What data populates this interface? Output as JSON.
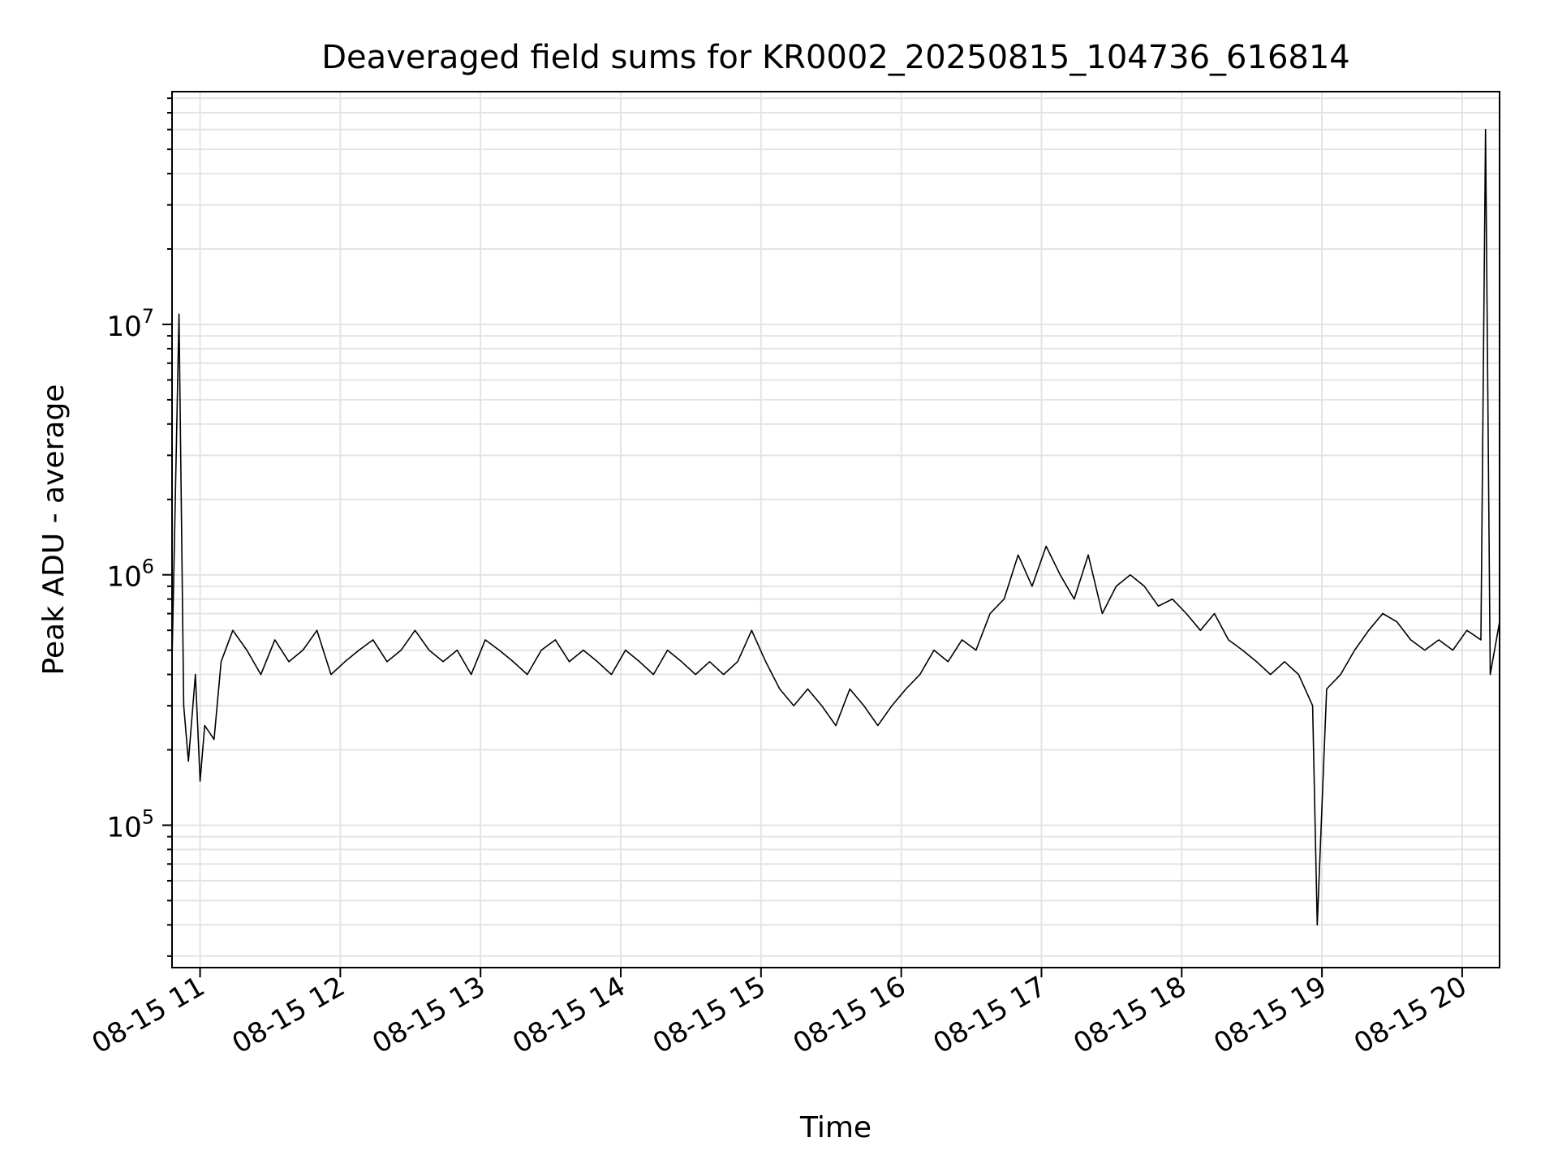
{
  "chart_data": {
    "type": "line",
    "title": "Deaveraged field sums for KR0002_20250815_104736_616814",
    "xlabel": "Time",
    "ylabel": "Peak ADU - average",
    "x_start": "2025-08-15 10:48",
    "x_end": "2025-08-15 20:16",
    "xlim": [
      "2025-08-15 10:48",
      "2025-08-15 20:16"
    ],
    "ylim": [
      27000,
      85000000
    ],
    "yscale": "log",
    "grid": true,
    "legend": "none",
    "xticks": [
      {
        "t": "2025-08-15 11:00",
        "label": "08-15 11"
      },
      {
        "t": "2025-08-15 12:00",
        "label": "08-15 12"
      },
      {
        "t": "2025-08-15 13:00",
        "label": "08-15 13"
      },
      {
        "t": "2025-08-15 14:00",
        "label": "08-15 14"
      },
      {
        "t": "2025-08-15 15:00",
        "label": "08-15 15"
      },
      {
        "t": "2025-08-15 16:00",
        "label": "08-15 16"
      },
      {
        "t": "2025-08-15 17:00",
        "label": "08-15 17"
      },
      {
        "t": "2025-08-15 18:00",
        "label": "08-15 18"
      },
      {
        "t": "2025-08-15 19:00",
        "label": "08-15 19"
      },
      {
        "t": "2025-08-15 20:00",
        "label": "08-15 20"
      }
    ],
    "yticks": [
      {
        "value": 100000,
        "base": "10",
        "exp": "5"
      },
      {
        "value": 1000000,
        "base": "10",
        "exp": "6"
      },
      {
        "value": 10000000,
        "base": "10",
        "exp": "7"
      }
    ],
    "series": [
      {
        "color": "#000000",
        "x": [
          "2025-08-15 10:48",
          "2025-08-15 10:51",
          "2025-08-15 10:53",
          "2025-08-15 10:55",
          "2025-08-15 10:58",
          "2025-08-15 11:00",
          "2025-08-15 11:02",
          "2025-08-15 11:06",
          "2025-08-15 11:09",
          "2025-08-15 11:14",
          "2025-08-15 11:20",
          "2025-08-15 11:26",
          "2025-08-15 11:32",
          "2025-08-15 11:38",
          "2025-08-15 11:44",
          "2025-08-15 11:50",
          "2025-08-15 11:56",
          "2025-08-15 12:02",
          "2025-08-15 12:08",
          "2025-08-15 12:14",
          "2025-08-15 12:20",
          "2025-08-15 12:26",
          "2025-08-15 12:32",
          "2025-08-15 12:38",
          "2025-08-15 12:44",
          "2025-08-15 12:50",
          "2025-08-15 12:56",
          "2025-08-15 13:02",
          "2025-08-15 13:08",
          "2025-08-15 13:14",
          "2025-08-15 13:20",
          "2025-08-15 13:26",
          "2025-08-15 13:32",
          "2025-08-15 13:38",
          "2025-08-15 13:44",
          "2025-08-15 13:50",
          "2025-08-15 13:56",
          "2025-08-15 14:02",
          "2025-08-15 14:08",
          "2025-08-15 14:14",
          "2025-08-15 14:20",
          "2025-08-15 14:26",
          "2025-08-15 14:32",
          "2025-08-15 14:38",
          "2025-08-15 14:44",
          "2025-08-15 14:50",
          "2025-08-15 14:56",
          "2025-08-15 15:02",
          "2025-08-15 15:08",
          "2025-08-15 15:14",
          "2025-08-15 15:20",
          "2025-08-15 15:26",
          "2025-08-15 15:32",
          "2025-08-15 15:38",
          "2025-08-15 15:44",
          "2025-08-15 15:50",
          "2025-08-15 15:56",
          "2025-08-15 16:02",
          "2025-08-15 16:08",
          "2025-08-15 16:14",
          "2025-08-15 16:20",
          "2025-08-15 16:26",
          "2025-08-15 16:32",
          "2025-08-15 16:38",
          "2025-08-15 16:44",
          "2025-08-15 16:50",
          "2025-08-15 16:56",
          "2025-08-15 17:02",
          "2025-08-15 17:08",
          "2025-08-15 17:14",
          "2025-08-15 17:20",
          "2025-08-15 17:26",
          "2025-08-15 17:32",
          "2025-08-15 17:38",
          "2025-08-15 17:44",
          "2025-08-15 17:50",
          "2025-08-15 17:56",
          "2025-08-15 18:02",
          "2025-08-15 18:08",
          "2025-08-15 18:14",
          "2025-08-15 18:20",
          "2025-08-15 18:26",
          "2025-08-15 18:32",
          "2025-08-15 18:38",
          "2025-08-15 18:44",
          "2025-08-15 18:50",
          "2025-08-15 18:56",
          "2025-08-15 18:58",
          "2025-08-15 19:02",
          "2025-08-15 19:08",
          "2025-08-15 19:14",
          "2025-08-15 19:20",
          "2025-08-15 19:26",
          "2025-08-15 19:32",
          "2025-08-15 19:38",
          "2025-08-15 19:44",
          "2025-08-15 19:50",
          "2025-08-15 19:56",
          "2025-08-15 20:02",
          "2025-08-15 20:08",
          "2025-08-15 20:10",
          "2025-08-15 20:12",
          "2025-08-15 20:16"
        ],
        "y": [
          450000,
          11000000,
          300000,
          180000,
          400000,
          150000,
          250000,
          220000,
          450000,
          600000,
          500000,
          400000,
          550000,
          450000,
          500000,
          600000,
          400000,
          450000,
          500000,
          550000,
          450000,
          500000,
          600000,
          500000,
          450000,
          500000,
          400000,
          550000,
          500000,
          450000,
          400000,
          500000,
          550000,
          450000,
          500000,
          450000,
          400000,
          500000,
          450000,
          400000,
          500000,
          450000,
          400000,
          450000,
          400000,
          450000,
          600000,
          450000,
          350000,
          300000,
          350000,
          300000,
          250000,
          350000,
          300000,
          250000,
          300000,
          350000,
          400000,
          500000,
          450000,
          550000,
          500000,
          700000,
          800000,
          1200000,
          900000,
          1300000,
          1000000,
          800000,
          1200000,
          700000,
          900000,
          1000000,
          900000,
          750000,
          800000,
          700000,
          600000,
          700000,
          550000,
          500000,
          450000,
          400000,
          450000,
          400000,
          300000,
          40000,
          350000,
          400000,
          500000,
          600000,
          700000,
          650000,
          550000,
          500000,
          550000,
          500000,
          600000,
          550000,
          60000000,
          400000,
          650000
        ]
      }
    ]
  }
}
